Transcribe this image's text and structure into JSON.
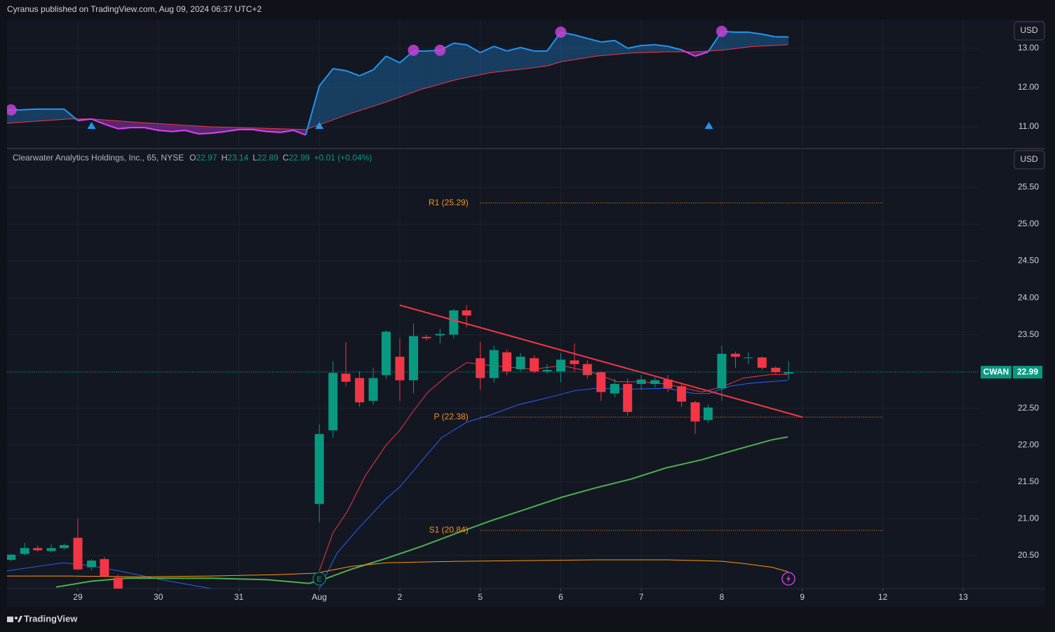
{
  "header": {
    "publisher": "Cyranus published on TradingView.com, Aug 09, 2024 06:37 UTC+2"
  },
  "footer": {
    "brand": "TradingView"
  },
  "chart_data": [
    {
      "type": "line",
      "currency": "USD",
      "grid": true,
      "xlim": [
        -0.88,
        11.19
      ],
      "ylim": [
        10.5,
        13.73
      ],
      "yticks": [
        {
          "value": 11,
          "label": "11.00"
        },
        {
          "value": 12,
          "label": "12.00"
        },
        {
          "value": 13,
          "label": "13.00"
        }
      ],
      "series": [
        {
          "color": "#2196f3",
          "below_color": "#e040fb",
          "x": [
            -0.88,
            -0.71,
            -0.53,
            -0.36,
            -0.17,
            0,
            0.17,
            0.33,
            0.5,
            0.66,
            0.83,
            1,
            1.17,
            1.33,
            1.5,
            1.67,
            1.83,
            2,
            2.17,
            2.35,
            2.52,
            2.68,
            2.83,
            3,
            3.17,
            3.33,
            3.5,
            3.67,
            3.83,
            4,
            4.17,
            4.33,
            4.5,
            4.67,
            4.83,
            5,
            5.17,
            5.33,
            5.5,
            5.67,
            5.83,
            6,
            6.17,
            6.33,
            6.5,
            6.67,
            6.83,
            7,
            7.17,
            7.33,
            7.5,
            7.67,
            7.83,
            8,
            8.17,
            8.33,
            8.5,
            8.67,
            8.83
          ],
          "values": [
            11.43,
            11.43,
            11.45,
            11.45,
            11.45,
            11.16,
            11.2,
            11.07,
            10.95,
            10.98,
            10.98,
            10.91,
            10.88,
            10.91,
            10.82,
            10.84,
            10.88,
            10.93,
            10.93,
            10.88,
            10.86,
            10.91,
            10.79,
            12.04,
            12.48,
            12.43,
            12.3,
            12.45,
            12.8,
            12.63,
            12.93,
            12.93,
            12.95,
            13.13,
            13.09,
            12.89,
            13.05,
            12.93,
            13.02,
            12.93,
            12.93,
            13.41,
            13.34,
            13.25,
            13.16,
            13.2,
            13.0,
            13.07,
            13.09,
            13.05,
            12.96,
            12.8,
            12.91,
            13.43,
            13.41,
            13.41,
            13.36,
            13.29,
            13.29
          ]
        },
        {
          "color": "#f23645",
          "x": [
            -0.88,
            -0.1,
            0.17,
            0.78,
            1.65,
            2.52,
            2.83,
            3,
            3.39,
            3.83,
            4.26,
            4.7,
            5.13,
            5.57,
            5.83,
            6.01,
            6.44,
            6.88,
            7.31,
            7.66,
            8.0,
            8.36,
            8.82
          ],
          "values": [
            11.09,
            11.2,
            11.2,
            11.11,
            11.0,
            10.95,
            10.93,
            11.05,
            11.34,
            11.63,
            11.95,
            12.2,
            12.38,
            12.48,
            12.55,
            12.66,
            12.8,
            12.88,
            12.91,
            12.91,
            12.95,
            13.04,
            13.09
          ]
        }
      ],
      "signals": {
        "color": "#c542d6",
        "x": [
          -0.83,
          4.17,
          4.5,
          6.0,
          8.0
        ],
        "values": [
          11.43,
          12.95,
          12.95,
          13.41,
          13.43
        ]
      },
      "up_signals": {
        "color": "#2196f3",
        "x": [
          0.17,
          3.0,
          7.84
        ]
      }
    },
    {
      "type": "candlestick",
      "currency": "USD",
      "grid": true,
      "legend": {
        "name": "Clearwater Analytics Holdings, Inc., 65, NYSE",
        "ohlc": [
          {
            "label": "O",
            "value": 22.97
          },
          {
            "label": "H",
            "value": 23.14
          },
          {
            "label": "L",
            "value": 22.89
          },
          {
            "label": "C",
            "value": 22.99
          }
        ],
        "change": "+0.01 (+0.04%)"
      },
      "xlim": [
        -0.88,
        11.19
      ],
      "ylim": [
        20.05,
        26.0
      ],
      "xticks": [
        {
          "value": 0,
          "label": "29"
        },
        {
          "value": 1,
          "label": "30"
        },
        {
          "value": 2,
          "label": "31"
        },
        {
          "value": 3,
          "label": "Aug"
        },
        {
          "value": 4,
          "label": "2"
        },
        {
          "value": 5,
          "label": "5"
        },
        {
          "value": 6,
          "label": "6"
        },
        {
          "value": 7,
          "label": "7"
        },
        {
          "value": 8,
          "label": "8"
        },
        {
          "value": 9,
          "label": "9"
        },
        {
          "value": 10,
          "label": "12"
        },
        {
          "value": 11,
          "label": "13"
        }
      ],
      "yticks": [
        {
          "value": 20.5,
          "label": "20.50"
        },
        {
          "value": 21,
          "label": "21.00"
        },
        {
          "value": 21.5,
          "label": "21.50"
        },
        {
          "value": 22,
          "label": "22.00"
        },
        {
          "value": 22.5,
          "label": "22.50"
        },
        {
          "value": 23,
          "label": "23.00"
        },
        {
          "value": 23.5,
          "label": "23.50"
        },
        {
          "value": 24,
          "label": "24.00"
        },
        {
          "value": 24.5,
          "label": "24.50"
        },
        {
          "value": 25,
          "label": "25.00"
        },
        {
          "value": 25.5,
          "label": "25.50"
        }
      ],
      "up_color": "#089981",
      "down_color": "#f23645",
      "candles": {
        "x": [
          -0.83,
          -0.66,
          -0.5,
          -0.33,
          -0.17,
          0,
          0.17,
          0.33,
          0.5,
          3,
          3.17,
          3.33,
          3.5,
          3.67,
          3.83,
          4,
          4.17,
          4.33,
          4.5,
          4.67,
          4.83,
          5,
          5.17,
          5.33,
          5.5,
          5.67,
          5.83,
          6,
          6.17,
          6.33,
          6.5,
          6.67,
          6.83,
          7,
          7.17,
          7.33,
          7.5,
          7.67,
          7.83,
          8,
          8.17,
          8.33,
          8.5,
          8.67,
          8.83
        ],
        "open": [
          20.44,
          20.52,
          20.6,
          20.56,
          20.6,
          20.74,
          20.34,
          20.45,
          20.2,
          21.2,
          22.2,
          22.97,
          22.91,
          22.6,
          22.95,
          23.2,
          22.88,
          23.47,
          23.49,
          23.5,
          23.83,
          23.18,
          22.91,
          23.26,
          23.03,
          23.18,
          23.0,
          23.0,
          23.15,
          23.1,
          22.99,
          22.7,
          22.83,
          22.83,
          22.83,
          22.89,
          22.8,
          22.58,
          22.34,
          22.77,
          23.24,
          23.18,
          23.19,
          23.05,
          22.97
        ],
        "high": [
          20.52,
          20.67,
          20.63,
          20.65,
          20.66,
          21.0,
          20.45,
          20.48,
          20.24,
          22.28,
          23.14,
          23.4,
          23.0,
          23.05,
          23.56,
          23.45,
          23.65,
          23.5,
          23.58,
          23.85,
          23.9,
          23.4,
          23.35,
          23.3,
          23.25,
          23.22,
          23.1,
          23.25,
          23.38,
          23.15,
          23.0,
          22.9,
          22.9,
          22.95,
          22.92,
          22.95,
          22.85,
          22.6,
          22.55,
          23.35,
          23.27,
          23.26,
          23.2,
          23.07,
          23.14
        ],
        "low": [
          20.42,
          20.5,
          20.55,
          20.54,
          20.58,
          20.3,
          20.3,
          20.2,
          20.05,
          20.95,
          22.1,
          22.8,
          22.52,
          22.55,
          22.9,
          22.6,
          22.7,
          23.42,
          23.38,
          23.45,
          23.6,
          22.75,
          22.85,
          22.95,
          23.0,
          22.98,
          22.97,
          22.85,
          23.0,
          22.9,
          22.6,
          22.65,
          22.4,
          22.75,
          22.78,
          22.72,
          22.52,
          22.15,
          22.3,
          22.6,
          23.05,
          23.1,
          23.02,
          22.97,
          22.89
        ],
        "close": [
          20.51,
          20.6,
          20.57,
          20.6,
          20.64,
          20.31,
          20.43,
          20.22,
          20.05,
          22.15,
          22.98,
          22.86,
          22.58,
          22.91,
          23.54,
          22.88,
          23.48,
          23.45,
          23.51,
          23.83,
          23.76,
          22.91,
          23.29,
          23.0,
          23.2,
          23.0,
          23.02,
          23.16,
          23.1,
          22.95,
          22.72,
          22.83,
          22.45,
          22.89,
          22.88,
          22.77,
          22.59,
          22.32,
          22.51,
          23.24,
          23.2,
          23.19,
          23.05,
          22.99,
          22.99
        ]
      },
      "moving_averages": [
        {
          "color": "#f23645",
          "x": [
            3,
            3.17,
            3.35,
            3.57,
            3.83,
            4,
            4.18,
            4.35,
            4.61,
            4.83,
            5.13,
            5.66,
            6.01,
            6.36,
            6.7,
            6.97,
            7.31,
            7.75,
            8,
            8.27,
            8.62,
            8.82
          ],
          "values": [
            20.29,
            20.81,
            21.1,
            21.58,
            22.0,
            22.2,
            22.48,
            22.72,
            22.96,
            23.12,
            23.08,
            23.03,
            23.08,
            23.0,
            22.86,
            22.86,
            22.83,
            22.72,
            22.79,
            22.91,
            22.96,
            22.96
          ]
        },
        {
          "color": "#2962ff",
          "x": [
            -0.88,
            -0.44,
            -0.18,
            0.17,
            0.51,
            1.04,
            1.65,
            2.5,
            3,
            3.22,
            3.48,
            3.83,
            4,
            4.26,
            4.52,
            4.83,
            5.13,
            5.48,
            5.83,
            6.18,
            6.44,
            6.88,
            7.31,
            7.66,
            7.84,
            8.1,
            8.36,
            8.82
          ],
          "values": [
            20.29,
            20.36,
            20.4,
            20.36,
            20.29,
            20.17,
            20.05,
            null,
            20.05,
            20.53,
            20.86,
            21.27,
            21.43,
            21.77,
            22.1,
            22.31,
            22.41,
            22.55,
            22.64,
            22.74,
            22.77,
            22.76,
            22.77,
            22.7,
            22.7,
            22.8,
            22.84,
            22.88
          ]
        },
        {
          "color": "#4caf50",
          "x": [
            -0.27,
            0.17,
            0.6,
            1.04,
            1.65,
            2.35,
            2.87,
            3.04,
            3.39,
            3.83,
            4.26,
            4.7,
            5.13,
            5.57,
            6.01,
            6.44,
            6.88,
            7.31,
            7.75,
            8.19,
            8.62,
            8.82
          ],
          "values": [
            20.07,
            20.15,
            20.19,
            20.19,
            20.19,
            20.17,
            20.12,
            20.17,
            20.31,
            20.46,
            20.62,
            20.8,
            20.97,
            21.13,
            21.29,
            21.42,
            21.54,
            21.69,
            21.8,
            21.94,
            22.07,
            22.11
          ]
        },
        {
          "color": "#ff9800",
          "x": [
            -0.88,
            -0.1,
            0.78,
            1.65,
            2.52,
            2.96,
            3.39,
            3.83,
            4.7,
            5.57,
            6.44,
            7.31,
            7.75,
            8.01,
            8.27,
            8.62,
            8.82
          ],
          "values": [
            20.22,
            20.22,
            20.21,
            20.22,
            20.24,
            20.26,
            20.35,
            20.4,
            20.42,
            20.43,
            20.44,
            20.44,
            20.43,
            20.42,
            20.39,
            20.34,
            20.28
          ]
        }
      ],
      "trendline": {
        "color": "#f23645",
        "x": [
          4,
          9
        ],
        "values": [
          23.9,
          22.38
        ]
      },
      "levels": {
        "color": "#f7931a",
        "from": 5,
        "to": 10,
        "items": [
          {
            "label": "R1 (25.29)",
            "value": 25.29
          },
          {
            "label": "P (22.38)",
            "value": 22.38
          },
          {
            "label": "S1 (20.84)",
            "value": 20.84
          }
        ]
      },
      "last": {
        "symbol": "CWAN",
        "price": 22.99
      },
      "events": [
        {
          "x": 3,
          "label": "E"
        }
      ]
    }
  ]
}
